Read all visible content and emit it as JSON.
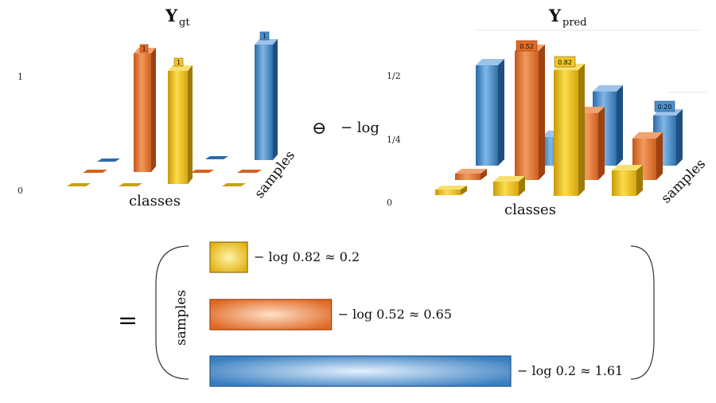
{
  "colors": {
    "yellow": "#e8be1a",
    "orange": "#e0702a",
    "blue": "#3f86c6"
  },
  "left_panel": {
    "title_main": "Y",
    "title_sub": "gt",
    "ticks": [
      "1",
      "0"
    ],
    "axis_classes": "classes",
    "axis_samples": "samples",
    "bar_labels": [
      "1",
      "1",
      "1"
    ]
  },
  "operator": {
    "symbol": "⊖",
    "text": "− log"
  },
  "right_panel": {
    "title_main": "Y",
    "title_sub": "pred",
    "ticks": [
      "1/2",
      "1/4",
      "0"
    ],
    "axis_classes": "classes",
    "axis_samples": "samples",
    "bar_labels": [
      "0.52",
      "0.82",
      "0.20"
    ]
  },
  "result": {
    "equals": "=",
    "axis_samples": "samples",
    "rows": [
      {
        "label": "− log 0.82 ≈ 0.2",
        "value": 0.2,
        "color": "yellow"
      },
      {
        "label": "− log 0.52 ≈ 0.65",
        "value": 0.65,
        "color": "orange"
      },
      {
        "label": "− log 0.2 ≈ 1.61",
        "value": 1.61,
        "color": "blue"
      }
    ]
  }
}
